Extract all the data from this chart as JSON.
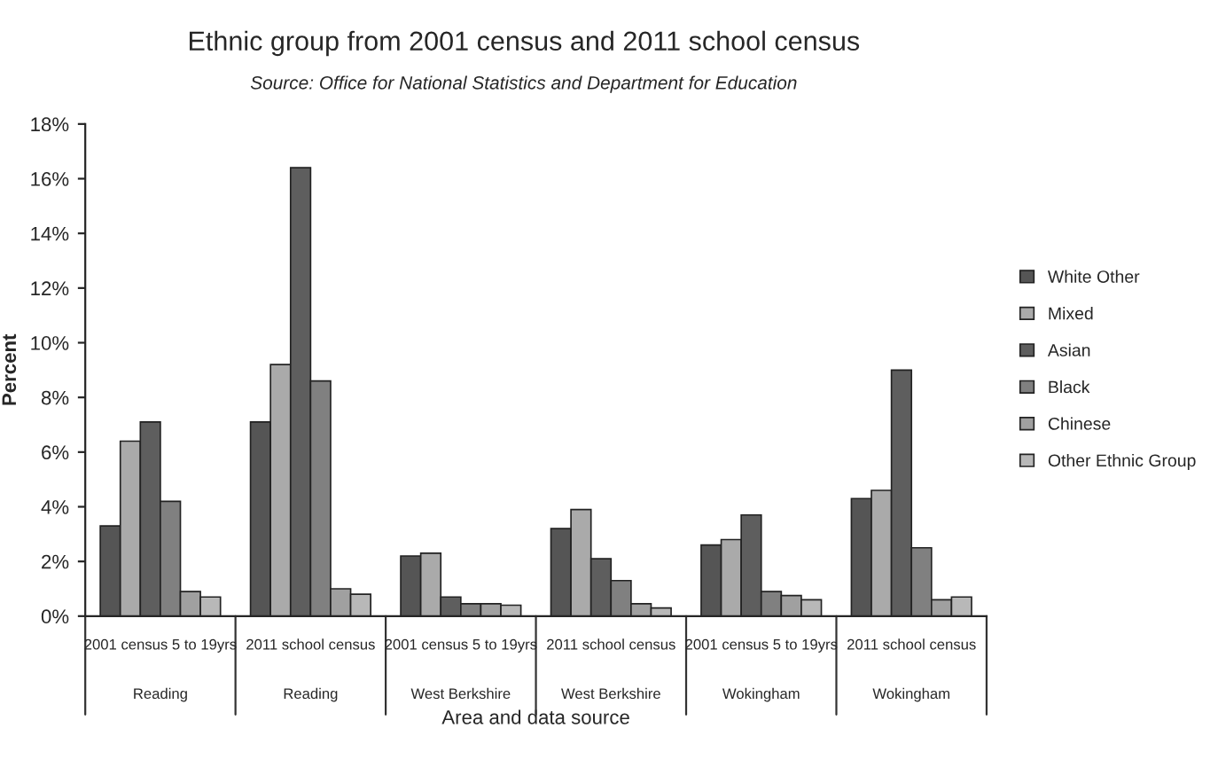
{
  "chart_data": {
    "type": "bar",
    "title": "Ethnic group from 2001 census and 2011 school census",
    "subtitle": "Source: Office for National Statistics and Department for Education",
    "xlabel": "Area and data source",
    "ylabel": "Percent",
    "categories": [
      "2001 census 5 to 19yrs\nReading",
      "2011 school census\nReading",
      "2001 census 5 to 19yrs\nWest Berkshire",
      "2011 school census\nWest Berkshire",
      "2001 census 5 to 19yrs\nWokingham",
      "2011 school census\nWokingham"
    ],
    "series": [
      {
        "name": "White Other",
        "color": "#555555",
        "values": [
          3.3,
          7.1,
          2.2,
          3.2,
          2.6,
          4.3
        ]
      },
      {
        "name": "Mixed",
        "color": "#aaaaaa",
        "values": [
          6.4,
          9.2,
          2.3,
          3.9,
          2.8,
          4.6
        ]
      },
      {
        "name": "Asian",
        "color": "#5e5e5e",
        "values": [
          7.1,
          16.4,
          0.7,
          2.1,
          3.7,
          9.0
        ]
      },
      {
        "name": "Black",
        "color": "#808080",
        "values": [
          4.2,
          8.6,
          0.45,
          1.3,
          0.9,
          2.5
        ]
      },
      {
        "name": "Chinese",
        "color": "#a0a0a0",
        "values": [
          0.9,
          1.0,
          0.45,
          0.45,
          0.75,
          0.6
        ]
      },
      {
        "name": "Other Ethnic Group",
        "color": "#b8b8b8",
        "values": [
          0.7,
          0.8,
          0.4,
          0.3,
          0.6,
          0.7
        ]
      }
    ],
    "ylim": [
      0,
      18
    ],
    "yticks": [
      {
        "value": 0,
        "label": "0%"
      },
      {
        "value": 2,
        "label": "2%"
      },
      {
        "value": 4,
        "label": "4%"
      },
      {
        "value": 6,
        "label": "6%"
      },
      {
        "value": 8,
        "label": "8%"
      },
      {
        "value": 10,
        "label": "10%"
      },
      {
        "value": 12,
        "label": "12%"
      },
      {
        "value": 14,
        "label": "14%"
      },
      {
        "value": 16,
        "label": "16%"
      },
      {
        "value": 18,
        "label": "18%"
      }
    ],
    "grid": false,
    "legend": "right"
  }
}
